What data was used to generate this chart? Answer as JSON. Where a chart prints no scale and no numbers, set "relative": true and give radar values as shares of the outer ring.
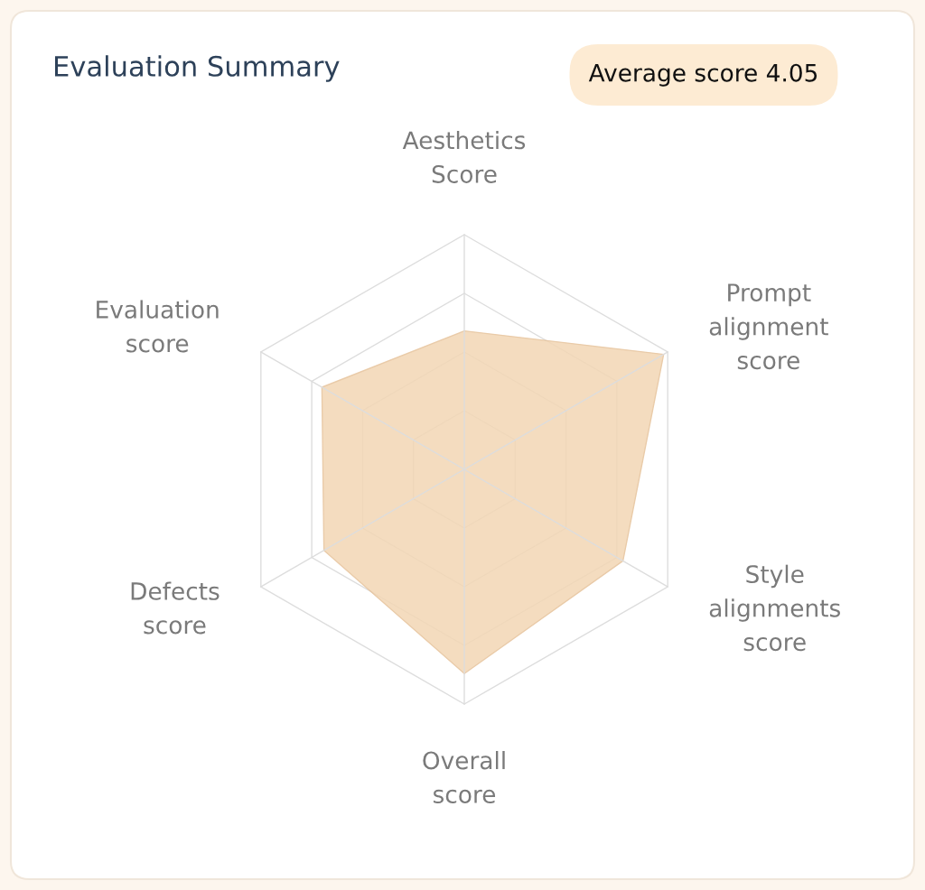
{
  "chart_data": {
    "type": "radar",
    "title": "Evaluation Summary",
    "annotations": [
      "Average score 4.05"
    ],
    "categories": [
      "Aesthetics\nScore",
      "Prompt\nalignment\nscore",
      "Style\nalignments\nscore",
      "Overall\nscore",
      "Defects\nscore",
      "Evaluation\nscore"
    ],
    "relative": true,
    "grid": true,
    "legend": false,
    "series": [
      {
        "color": "#f3d7b5",
        "values": [
          0.59,
          0.98,
          0.78,
          0.87,
          0.69,
          0.7
        ]
      }
    ]
  }
}
